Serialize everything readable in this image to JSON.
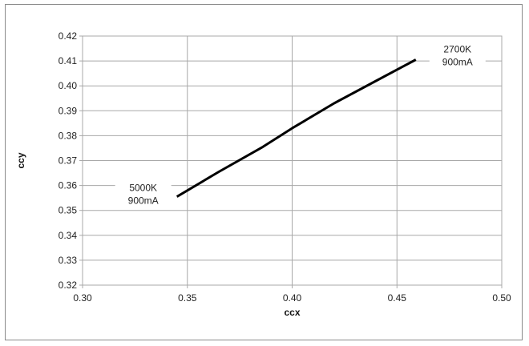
{
  "chart_data": {
    "type": "line",
    "title": "",
    "xlabel": "ccx",
    "ylabel": "ccy",
    "xlim": [
      0.3,
      0.5
    ],
    "ylim": [
      0.32,
      0.42
    ],
    "x_ticks": [
      "0.30",
      "0.35",
      "0.40",
      "0.45",
      "0.50"
    ],
    "y_ticks": [
      "0.32",
      "0.33",
      "0.34",
      "0.35",
      "0.36",
      "0.37",
      "0.38",
      "0.39",
      "0.40",
      "0.41",
      "0.42"
    ],
    "grid": true,
    "legend": "none",
    "series": [
      {
        "x": [
          0.345,
          0.365,
          0.386,
          0.4,
          0.42,
          0.44,
          0.459
        ],
        "y": [
          0.3555,
          0.3655,
          0.3755,
          0.383,
          0.393,
          0.402,
          0.4105
        ]
      }
    ],
    "annotations": [
      {
        "lines": [
          "5000K",
          "900mA"
        ],
        "x": 0.345,
        "y": 0.3555
      },
      {
        "lines": [
          "2700K",
          "900mA"
        ],
        "x": 0.459,
        "y": 0.4105
      }
    ]
  },
  "colors": {
    "line": "#000000",
    "grid": "#a8a8a8",
    "frame": "#8a8a8a"
  }
}
